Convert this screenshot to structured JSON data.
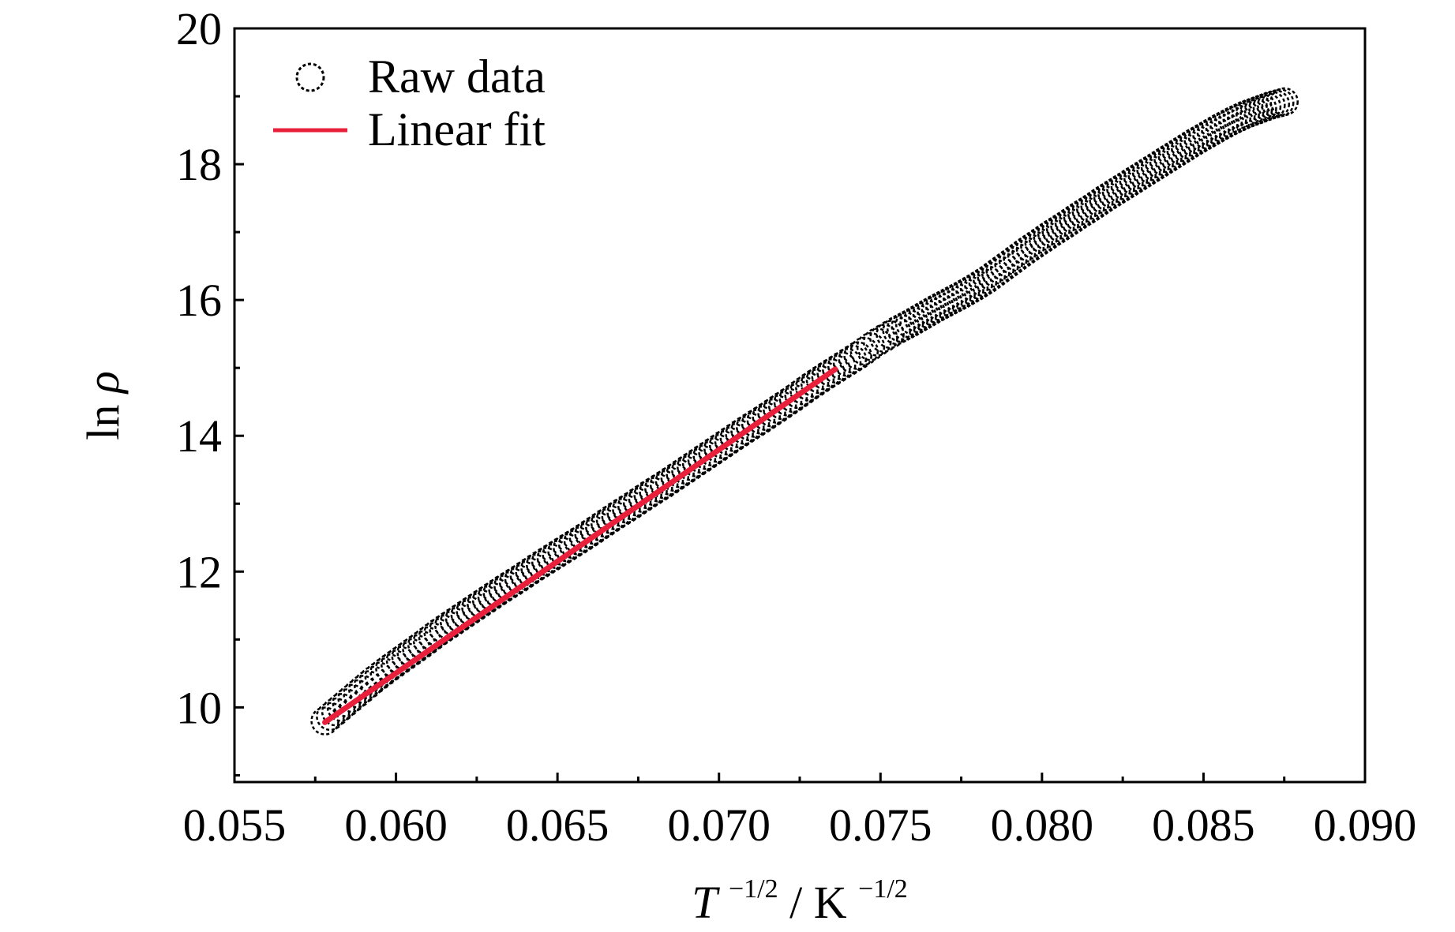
{
  "chart_data": {
    "type": "scatter",
    "title": "",
    "xlabel": {
      "base": "T",
      "base_exp": "−1/2",
      "slash": "/",
      "unit": "K",
      "unit_exp": "−1/2"
    },
    "ylabel": {
      "prefix": "ln",
      "symbol": "ρ"
    },
    "xlim": [
      0.055,
      0.09
    ],
    "ylim": [
      8.9,
      20.0
    ],
    "x_ticks": [
      0.055,
      0.06,
      0.065,
      0.07,
      0.075,
      0.08,
      0.085,
      0.09
    ],
    "x_tick_labels": [
      "0.055",
      "0.060",
      "0.065",
      "0.070",
      "0.075",
      "0.080",
      "0.085",
      "0.090"
    ],
    "y_ticks": [
      10,
      12,
      14,
      16,
      18,
      20
    ],
    "y_tick_labels": [
      "10",
      "12",
      "14",
      "16",
      "18",
      "20"
    ],
    "grid": false,
    "legend_position": "top-left",
    "series": [
      {
        "name": "Raw data",
        "marker": "open-circle",
        "color": "#000000",
        "points": [
          [
            0.0578,
            9.8
          ],
          [
            0.0583,
            10.0
          ],
          [
            0.0588,
            10.2
          ],
          [
            0.0593,
            10.4
          ],
          [
            0.0598,
            10.58
          ],
          [
            0.0603,
            10.75
          ],
          [
            0.0608,
            10.92
          ],
          [
            0.0613,
            11.1
          ],
          [
            0.0618,
            11.26
          ],
          [
            0.0623,
            11.42
          ],
          [
            0.0628,
            11.58
          ],
          [
            0.0633,
            11.74
          ],
          [
            0.0638,
            11.89
          ],
          [
            0.0643,
            12.05
          ],
          [
            0.0648,
            12.2
          ],
          [
            0.0653,
            12.35
          ],
          [
            0.0658,
            12.5
          ],
          [
            0.0663,
            12.66
          ],
          [
            0.0668,
            12.82
          ],
          [
            0.0673,
            12.97
          ],
          [
            0.0678,
            13.13
          ],
          [
            0.0683,
            13.28
          ],
          [
            0.0688,
            13.44
          ],
          [
            0.0693,
            13.6
          ],
          [
            0.0698,
            13.76
          ],
          [
            0.0703,
            13.92
          ],
          [
            0.0708,
            14.08
          ],
          [
            0.0713,
            14.23
          ],
          [
            0.0718,
            14.39
          ],
          [
            0.0723,
            14.55
          ],
          [
            0.0728,
            14.72
          ],
          [
            0.0733,
            14.88
          ],
          [
            0.0738,
            15.03
          ],
          [
            0.0743,
            15.18
          ],
          [
            0.0749,
            15.38
          ],
          [
            0.0755,
            15.55
          ],
          [
            0.0759,
            15.65
          ],
          [
            0.0763,
            15.76
          ],
          [
            0.0767,
            15.87
          ],
          [
            0.0771,
            15.97
          ],
          [
            0.0775,
            16.07
          ],
          [
            0.0779,
            16.18
          ],
          [
            0.0783,
            16.3
          ],
          [
            0.0787,
            16.44
          ],
          [
            0.0791,
            16.58
          ],
          [
            0.0795,
            16.72
          ],
          [
            0.0799,
            16.85
          ],
          [
            0.0803,
            16.98
          ],
          [
            0.0807,
            17.1
          ],
          [
            0.0811,
            17.23
          ],
          [
            0.0815,
            17.35
          ],
          [
            0.0819,
            17.48
          ],
          [
            0.0823,
            17.6
          ],
          [
            0.0827,
            17.72
          ],
          [
            0.0831,
            17.84
          ],
          [
            0.0835,
            17.96
          ],
          [
            0.0839,
            18.08
          ],
          [
            0.0843,
            18.2
          ],
          [
            0.0847,
            18.32
          ],
          [
            0.0851,
            18.43
          ],
          [
            0.0855,
            18.54
          ],
          [
            0.0859,
            18.64
          ],
          [
            0.0863,
            18.73
          ],
          [
            0.0867,
            18.8
          ],
          [
            0.0871,
            18.87
          ],
          [
            0.0875,
            18.92
          ]
        ]
      },
      {
        "name": "Linear fit",
        "marker": "line",
        "color": "#e8203c",
        "points": [
          [
            0.0578,
            9.78
          ],
          [
            0.0736,
            14.98
          ]
        ]
      }
    ]
  }
}
